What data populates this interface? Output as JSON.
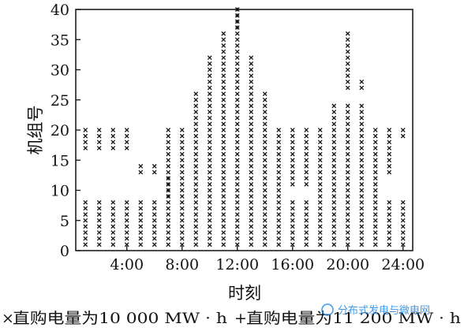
{
  "chart_data": {
    "type": "scatter",
    "title": "",
    "xlabel": "时刻",
    "ylabel": "机组号",
    "xlim": [
      0.3,
      24.7
    ],
    "ylim": [
      0,
      40
    ],
    "xticks": [
      4,
      8,
      12,
      16,
      20,
      24
    ],
    "xtick_labels": [
      "4:00",
      "8:00",
      "12:00",
      "16:00",
      "20:00",
      "24:00"
    ],
    "yticks": [
      0,
      5,
      10,
      15,
      20,
      25,
      30,
      35,
      40
    ],
    "ytick_labels": [
      "0",
      "5",
      "10",
      "15",
      "20",
      "25",
      "30",
      "35",
      "40"
    ],
    "grid": false,
    "legend_position": "bottom",
    "series": [
      {
        "name": "直购电量为10 000 MW · h",
        "marker": "×",
        "points": [
          {
            "hour": 1,
            "units": [
              1,
              2,
              3,
              4,
              5,
              6,
              7,
              8,
              17,
              18,
              19,
              20
            ]
          },
          {
            "hour": 2,
            "units": [
              1,
              2,
              3,
              4,
              5,
              6,
              7,
              8,
              17,
              18,
              19,
              20
            ]
          },
          {
            "hour": 3,
            "units": [
              1,
              2,
              3,
              4,
              5,
              6,
              7,
              8,
              17,
              18,
              19,
              20
            ]
          },
          {
            "hour": 4,
            "units": [
              1,
              2,
              3,
              4,
              5,
              6,
              7,
              8,
              17,
              18,
              19,
              20
            ]
          },
          {
            "hour": 5,
            "units": [
              1,
              2,
              3,
              4,
              5,
              6,
              7,
              8,
              13,
              14
            ]
          },
          {
            "hour": 6,
            "units": [
              1,
              2,
              3,
              4,
              5,
              6,
              7,
              8,
              13,
              14
            ]
          },
          {
            "hour": 7,
            "units": [
              1,
              2,
              3,
              4,
              5,
              6,
              7,
              8,
              9,
              10,
              11,
              12,
              13,
              14,
              15,
              16,
              17,
              18,
              19,
              20
            ]
          },
          {
            "hour": 8,
            "units": [
              1,
              2,
              3,
              4,
              5,
              6,
              7,
              8,
              9,
              10,
              11,
              12,
              13,
              14,
              15,
              16,
              17,
              18,
              19,
              20
            ]
          },
          {
            "hour": 9,
            "units": [
              1,
              2,
              3,
              4,
              5,
              6,
              7,
              8,
              9,
              10,
              11,
              12,
              13,
              14,
              15,
              16,
              17,
              18,
              19,
              20,
              21,
              22,
              23,
              24,
              25,
              26
            ]
          },
          {
            "hour": 10,
            "units": [
              1,
              2,
              3,
              4,
              5,
              6,
              7,
              8,
              9,
              10,
              11,
              12,
              13,
              14,
              15,
              16,
              17,
              18,
              19,
              20,
              21,
              22,
              23,
              24,
              25,
              26,
              27,
              28,
              29,
              30,
              31,
              32
            ]
          },
          {
            "hour": 11,
            "units": [
              1,
              2,
              3,
              4,
              5,
              6,
              7,
              8,
              9,
              10,
              11,
              12,
              13,
              14,
              15,
              16,
              17,
              18,
              19,
              20,
              21,
              22,
              23,
              24,
              25,
              26,
              27,
              28,
              29,
              30,
              31,
              32,
              33,
              34,
              35,
              36
            ]
          },
          {
            "hour": 12,
            "units": [
              1,
              2,
              3,
              4,
              5,
              6,
              7,
              8,
              9,
              10,
              11,
              12,
              13,
              14,
              15,
              16,
              17,
              18,
              19,
              20,
              21,
              22,
              23,
              24,
              25,
              26,
              27,
              28,
              29,
              30,
              31,
              32,
              33,
              34,
              35,
              36,
              37,
              38,
              39,
              40
            ]
          },
          {
            "hour": 13,
            "units": [
              1,
              2,
              3,
              4,
              5,
              6,
              7,
              8,
              9,
              10,
              11,
              12,
              13,
              14,
              15,
              16,
              17,
              18,
              19,
              20,
              21,
              22,
              23,
              24,
              25,
              26,
              27,
              28,
              29,
              30,
              31,
              32
            ]
          },
          {
            "hour": 14,
            "units": [
              1,
              2,
              3,
              4,
              5,
              6,
              7,
              8,
              9,
              10,
              11,
              12,
              13,
              14,
              15,
              16,
              17,
              18,
              19,
              20,
              21,
              22,
              23,
              24,
              25,
              26
            ]
          },
          {
            "hour": 15,
            "units": [
              1,
              2,
              3,
              4,
              5,
              6,
              7,
              8,
              9,
              10,
              11,
              12,
              13,
              14,
              15,
              16,
              17,
              18,
              19,
              20
            ]
          },
          {
            "hour": 16,
            "units": [
              1,
              2,
              3,
              4,
              5,
              6,
              7,
              8,
              11,
              12,
              13,
              14,
              15,
              16,
              17,
              18,
              19,
              20
            ]
          },
          {
            "hour": 17,
            "units": [
              1,
              2,
              3,
              4,
              5,
              6,
              7,
              8,
              11,
              12,
              13,
              14,
              15,
              16,
              17,
              18,
              19,
              20
            ]
          },
          {
            "hour": 18,
            "units": [
              1,
              2,
              3,
              4,
              5,
              6,
              7,
              8,
              9,
              10,
              11,
              12,
              13,
              14,
              15,
              16,
              17,
              18,
              19,
              20
            ]
          },
          {
            "hour": 19,
            "units": [
              1,
              2,
              3,
              4,
              5,
              6,
              7,
              8,
              9,
              10,
              11,
              12,
              13,
              14,
              15,
              16,
              17,
              18,
              19,
              20,
              21,
              22,
              23,
              24
            ]
          },
          {
            "hour": 20,
            "units": [
              1,
              2,
              3,
              4,
              5,
              6,
              7,
              8,
              9,
              10,
              11,
              12,
              13,
              14,
              15,
              16,
              17,
              18,
              19,
              20,
              21,
              22,
              23,
              24,
              27,
              28,
              29,
              30,
              31,
              32,
              33,
              34,
              35,
              36
            ]
          },
          {
            "hour": 21,
            "units": [
              1,
              2,
              3,
              4,
              5,
              6,
              7,
              8,
              9,
              10,
              11,
              12,
              13,
              14,
              15,
              16,
              17,
              18,
              19,
              20,
              21,
              22,
              23,
              24,
              27,
              28
            ]
          },
          {
            "hour": 22,
            "units": [
              1,
              2,
              3,
              4,
              5,
              6,
              7,
              8,
              9,
              10,
              11,
              12,
              13,
              14,
              15,
              16,
              17,
              18,
              19,
              20
            ]
          },
          {
            "hour": 23,
            "units": [
              1,
              2,
              3,
              4,
              5,
              6,
              7,
              8,
              13,
              14,
              15,
              16,
              17,
              18,
              19,
              20
            ]
          },
          {
            "hour": 24,
            "units": [
              1,
              2,
              3,
              4,
              5,
              6,
              7,
              8,
              19,
              20
            ]
          }
        ]
      },
      {
        "name": "直购电量为11 200 MW · h",
        "marker": "+",
        "points": [
          {
            "hour": 7,
            "units": [
              9,
              10,
              11,
              12
            ]
          },
          {
            "hour": 12,
            "units": [
              37,
              38,
              39,
              40
            ]
          }
        ]
      }
    ]
  },
  "legend": {
    "item1_symbol": "×",
    "item1_label": "直购电量为10 000 MW · h",
    "item2_symbol": "+",
    "item2_label": "直购电量为11 200 MW · h"
  },
  "watermark": {
    "text": "分布式发电与微电网"
  },
  "colors": {
    "ink": "#111111",
    "watermark": "#1e88e5"
  }
}
